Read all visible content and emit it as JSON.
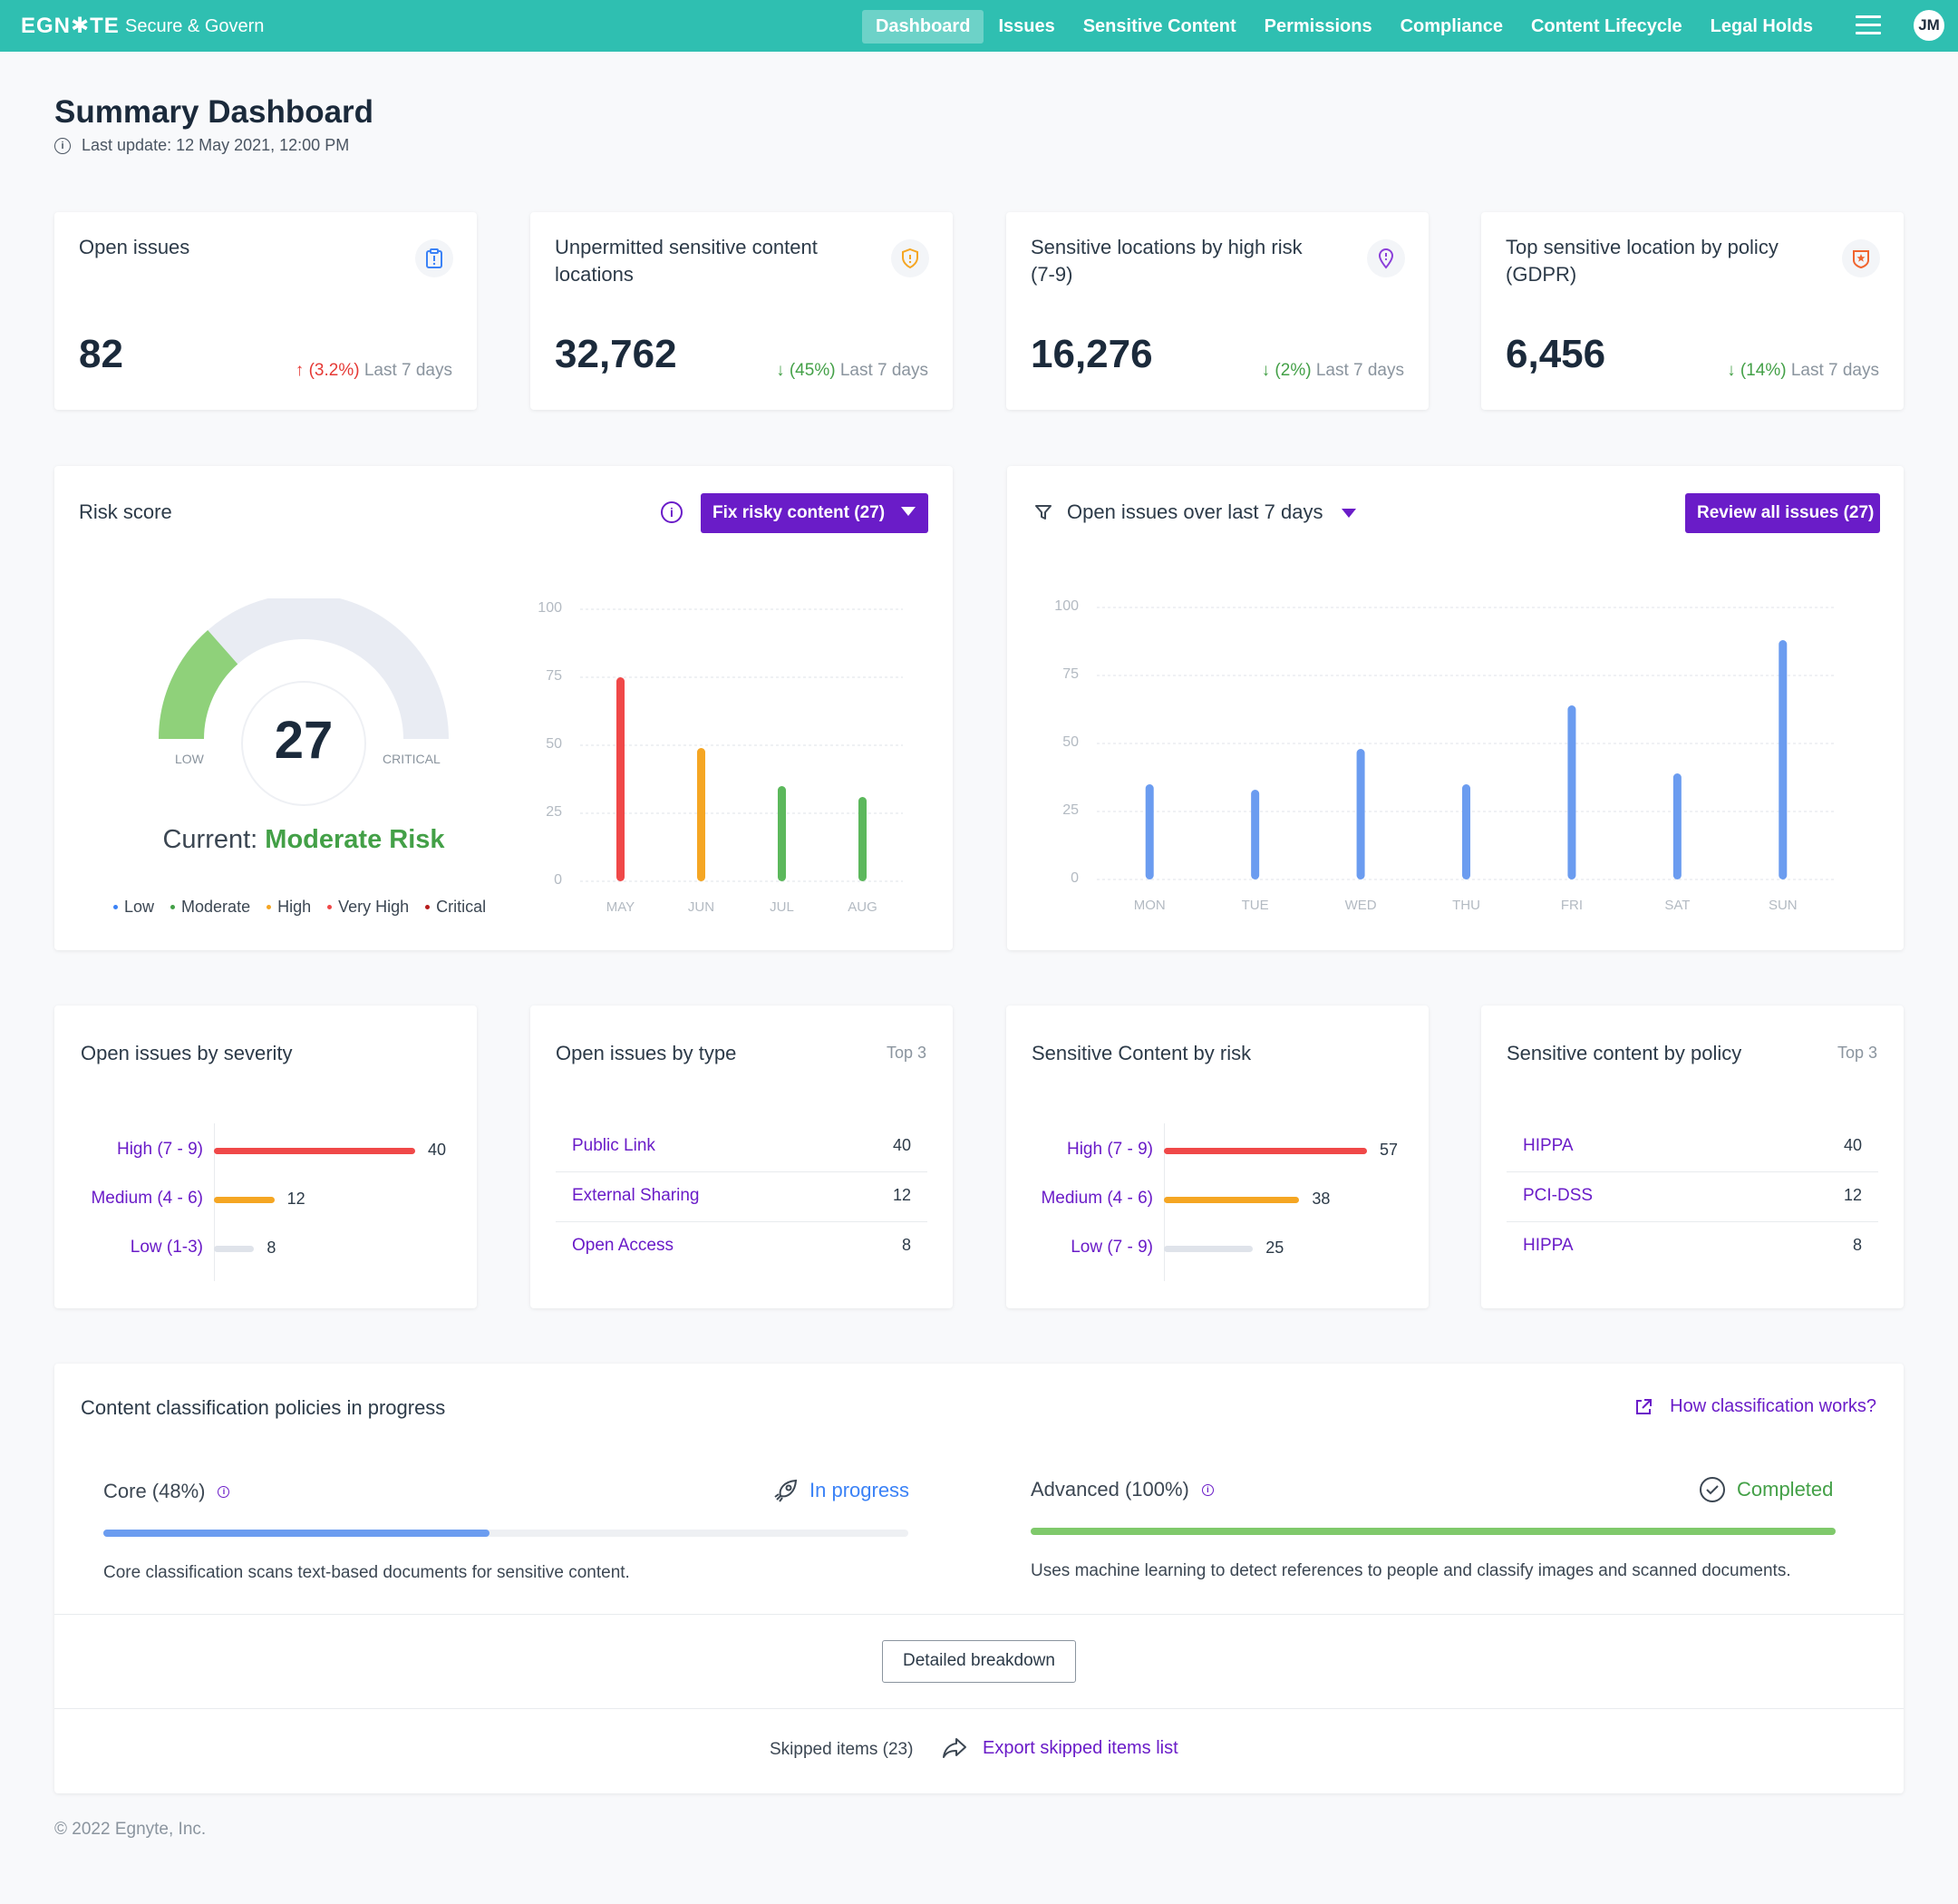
{
  "header": {
    "brand": "EGN✱TE",
    "product": "Secure & Govern",
    "nav": [
      "Dashboard",
      "Issues",
      "Sensitive Content",
      "Permissions",
      "Compliance",
      "Content Lifecycle",
      "Legal Holds"
    ],
    "avatar": "JM"
  },
  "page": {
    "title": "Summary Dashboard",
    "last_update": "Last update: 12 May 2021, 12:00 PM"
  },
  "kpis": [
    {
      "title": "Open issues",
      "value": "82",
      "trend": "(3.2%)",
      "direction": "up",
      "period": "Last 7 days",
      "icon": "clipboard-alert-icon",
      "color": "#3b82f6"
    },
    {
      "title": "Unpermitted sensitive content locations",
      "value": "32,762",
      "trend": "(45%)",
      "direction": "down",
      "period": "Last 7 days",
      "icon": "shield-alert-icon",
      "color": "#f5a623"
    },
    {
      "title": "Sensitive locations by high risk (7-9)",
      "value": "16,276",
      "trend": "(2%)",
      "direction": "down",
      "period": "Last 7 days",
      "icon": "location-pin-icon",
      "color": "#8b3fd9"
    },
    {
      "title": "Top sensitive location by policy (GDPR)",
      "value": "6,456",
      "trend": "(14%)",
      "direction": "down",
      "period": "Last 7 days",
      "icon": "policy-badge-icon",
      "color": "#f0652f"
    }
  ],
  "risk": {
    "title": "Risk score",
    "fix_button": "Fix risky content (27)",
    "score": "27",
    "gauge_fraction": 0.27,
    "low_label": "LOW",
    "critical_label": "CRITICAL",
    "current_prefix": "Current:",
    "current_level": "Moderate Risk",
    "legend": [
      {
        "label": "Low",
        "color": "#3b82f6"
      },
      {
        "label": "Moderate",
        "color": "#43a047"
      },
      {
        "label": "High",
        "color": "#f5a623"
      },
      {
        "label": "Very High",
        "color": "#f04848"
      },
      {
        "label": "Critical",
        "color": "#b71c1c"
      }
    ]
  },
  "chart_data": [
    {
      "type": "bar",
      "categories": [
        "MAY",
        "JUN",
        "JUL",
        "AUG"
      ],
      "values": [
        75,
        49,
        35,
        31
      ],
      "colors": [
        "#f04848",
        "#f5a623",
        "#5cb85c",
        "#5cb85c"
      ],
      "ylim": [
        0,
        100
      ],
      "yticks": [
        0,
        25,
        50,
        75,
        100
      ]
    },
    {
      "type": "bar",
      "title": "Open issues over last 7 days",
      "categories": [
        "MON",
        "TUE",
        "WED",
        "THU",
        "FRI",
        "SAT",
        "SUN"
      ],
      "values": [
        35,
        33,
        48,
        35,
        64,
        39,
        88
      ],
      "color": "#6b9cf0",
      "ylim": [
        0,
        100
      ],
      "yticks": [
        0,
        25,
        50,
        75,
        100
      ]
    }
  ],
  "issues_panel": {
    "review_button": "Review all issues (27)"
  },
  "severity": {
    "title": "Open issues by severity",
    "rows": [
      {
        "label": "High (7 - 9)",
        "value": 40,
        "color": "#f04848"
      },
      {
        "label": "Medium (4 - 6)",
        "value": 12,
        "color": "#f5a623"
      },
      {
        "label": "Low (1-3)",
        "value": 8,
        "color": "#dfe3ea"
      }
    ]
  },
  "by_type": {
    "title": "Open issues by type",
    "badge": "Top 3",
    "rows": [
      {
        "label": "Public Link",
        "value": "40"
      },
      {
        "label": "External Sharing",
        "value": "12"
      },
      {
        "label": "Open Access",
        "value": "8"
      }
    ]
  },
  "by_risk": {
    "title": "Sensitive Content by risk",
    "rows": [
      {
        "label": "High (7 - 9)",
        "value": 57,
        "color": "#f04848"
      },
      {
        "label": "Medium (4 - 6)",
        "value": 38,
        "color": "#f5a623"
      },
      {
        "label": "Low (7 - 9)",
        "value": 25,
        "color": "#dfe3ea"
      }
    ]
  },
  "by_policy": {
    "title": "Sensitive content by policy",
    "badge": "Top 3",
    "rows": [
      {
        "label": "HIPPA",
        "value": "40"
      },
      {
        "label": "PCI-DSS",
        "value": "12"
      },
      {
        "label": "HIPPA",
        "value": "8"
      }
    ]
  },
  "classification": {
    "title": "Content classification policies in progress",
    "help_link": "How classification works?",
    "core": {
      "label": "Core (48%)",
      "status": "In progress",
      "progress": 0.48,
      "description": "Core classification scans text-based documents for sensitive content."
    },
    "advanced": {
      "label": "Advanced (100%)",
      "status": "Completed",
      "progress": 1.0,
      "description": "Uses machine learning to detect references to people and classify images and scanned documents."
    },
    "breakdown_button": "Detailed breakdown",
    "skipped": "Skipped items (23)",
    "export_link": "Export skipped items list"
  },
  "footer": {
    "copyright": "© 2022 Egnyte, Inc."
  }
}
